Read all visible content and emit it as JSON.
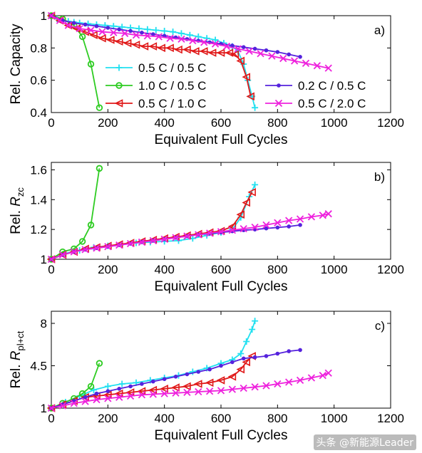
{
  "watermark": "头条 @新能源Leader",
  "colors": {
    "0.5 C / 0.5 C": "#22e0f0",
    "1.0 C / 0.5 C": "#2ecc22",
    "0.5 C / 1.0 C": "#e01818",
    "0.2 C / 0.5 C": "#5522dd",
    "0.5 C / 2.0 C": "#ee22dd"
  },
  "markers": {
    "0.5 C / 0.5 C": "plus",
    "1.0 C / 0.5 C": "circle",
    "0.5 C / 1.0 C": "triangle-left",
    "0.2 C / 0.5 C": "dot",
    "0.5 C / 2.0 C": "cross"
  },
  "chart_data": [
    {
      "type": "line",
      "panel": "a)",
      "xlabel": "Equivalent Full Cycles",
      "ylabel": "Rel. Capacity",
      "xlim": [
        0,
        1200
      ],
      "ylim": [
        0.4,
        1.0
      ],
      "xticks": [
        0,
        200,
        400,
        600,
        800,
        1000,
        1200
      ],
      "yticks": [
        0.4,
        0.6,
        0.8,
        1
      ],
      "legend": [
        "0.5 C / 0.5 C",
        "1.0 C / 0.5 C",
        "0.5 C / 1.0 C",
        "0.2 C / 0.5 C",
        "0.5 C / 2.0 C"
      ],
      "series": [
        {
          "name": "0.5 C / 0.5 C",
          "x": [
            0,
            20,
            40,
            60,
            80,
            100,
            130,
            160,
            190,
            220,
            250,
            280,
            310,
            340,
            370,
            400,
            430,
            460,
            490,
            520,
            550,
            580,
            610,
            640,
            660,
            680,
            695,
            710,
            720
          ],
          "y": [
            1.0,
            0.98,
            0.97,
            0.965,
            0.96,
            0.955,
            0.95,
            0.945,
            0.94,
            0.935,
            0.93,
            0.925,
            0.92,
            0.915,
            0.91,
            0.905,
            0.9,
            0.89,
            0.88,
            0.87,
            0.86,
            0.85,
            0.83,
            0.81,
            0.78,
            0.7,
            0.6,
            0.5,
            0.43
          ]
        },
        {
          "name": "1.0 C / 0.5 C",
          "x": [
            0,
            40,
            80,
            110,
            140,
            170
          ],
          "y": [
            1.0,
            0.98,
            0.94,
            0.87,
            0.7,
            0.43
          ]
        },
        {
          "name": "0.5 C / 1.0 C",
          "x": [
            0,
            30,
            60,
            90,
            120,
            150,
            180,
            210,
            240,
            270,
            300,
            330,
            360,
            390,
            420,
            450,
            480,
            510,
            540,
            570,
            600,
            630,
            650,
            670,
            690,
            705
          ],
          "y": [
            1.0,
            0.97,
            0.94,
            0.92,
            0.9,
            0.88,
            0.86,
            0.85,
            0.84,
            0.83,
            0.82,
            0.81,
            0.81,
            0.8,
            0.8,
            0.79,
            0.79,
            0.78,
            0.78,
            0.77,
            0.77,
            0.77,
            0.76,
            0.72,
            0.62,
            0.5
          ]
        },
        {
          "name": "0.2 C / 0.5 C",
          "x": [
            0,
            40,
            80,
            120,
            160,
            200,
            240,
            280,
            320,
            360,
            400,
            440,
            480,
            520,
            560,
            600,
            640,
            680,
            720,
            760,
            800,
            840,
            880
          ],
          "y": [
            1.0,
            0.97,
            0.955,
            0.945,
            0.935,
            0.925,
            0.915,
            0.905,
            0.895,
            0.885,
            0.875,
            0.865,
            0.855,
            0.845,
            0.835,
            0.825,
            0.815,
            0.805,
            0.795,
            0.785,
            0.775,
            0.76,
            0.745
          ]
        },
        {
          "name": "0.5 C / 2.0 C",
          "x": [
            0,
            30,
            60,
            100,
            140,
            180,
            220,
            260,
            300,
            340,
            380,
            420,
            460,
            500,
            540,
            580,
            620,
            660,
            700,
            740,
            780,
            820,
            860,
            900,
            940,
            980
          ],
          "y": [
            1.0,
            0.97,
            0.94,
            0.92,
            0.91,
            0.9,
            0.895,
            0.89,
            0.88,
            0.875,
            0.87,
            0.86,
            0.855,
            0.845,
            0.835,
            0.825,
            0.81,
            0.795,
            0.78,
            0.765,
            0.75,
            0.735,
            0.72,
            0.705,
            0.69,
            0.675
          ]
        }
      ]
    },
    {
      "type": "line",
      "panel": "b)",
      "xlabel": "Equivalent Full Cycles",
      "ylabel": "Rel. R",
      "ylabel_sub": "zc",
      "xlim": [
        0,
        1200
      ],
      "ylim": [
        1.0,
        1.65
      ],
      "xticks": [
        0,
        200,
        400,
        600,
        800,
        1000,
        1200
      ],
      "yticks": [
        1,
        1.2,
        1.4,
        1.6
      ],
      "series": [
        {
          "name": "0.5 C / 0.5 C",
          "x": [
            0,
            50,
            100,
            150,
            200,
            250,
            300,
            350,
            400,
            450,
            500,
            550,
            600,
            640,
            670,
            700,
            720
          ],
          "y": [
            1.0,
            1.04,
            1.06,
            1.08,
            1.09,
            1.1,
            1.11,
            1.115,
            1.12,
            1.125,
            1.14,
            1.16,
            1.18,
            1.2,
            1.28,
            1.42,
            1.5
          ]
        },
        {
          "name": "1.0 C / 0.5 C",
          "x": [
            0,
            40,
            80,
            110,
            140,
            170
          ],
          "y": [
            1.0,
            1.05,
            1.07,
            1.12,
            1.23,
            1.61
          ]
        },
        {
          "name": "0.5 C / 1.0 C",
          "x": [
            0,
            40,
            80,
            120,
            160,
            200,
            240,
            280,
            320,
            360,
            400,
            440,
            480,
            520,
            560,
            600,
            640,
            670,
            690,
            710
          ],
          "y": [
            1.0,
            1.03,
            1.05,
            1.07,
            1.08,
            1.09,
            1.1,
            1.11,
            1.12,
            1.13,
            1.14,
            1.15,
            1.16,
            1.17,
            1.18,
            1.19,
            1.22,
            1.3,
            1.38,
            1.45
          ]
        },
        {
          "name": "0.2 C / 0.5 C",
          "x": [
            0,
            40,
            80,
            120,
            160,
            200,
            240,
            280,
            320,
            360,
            400,
            440,
            480,
            520,
            560,
            600,
            640,
            680,
            720,
            760,
            800,
            840,
            880
          ],
          "y": [
            1.0,
            1.03,
            1.05,
            1.065,
            1.075,
            1.085,
            1.095,
            1.105,
            1.115,
            1.125,
            1.135,
            1.145,
            1.155,
            1.165,
            1.172,
            1.18,
            1.188,
            1.195,
            1.2,
            1.207,
            1.213,
            1.22,
            1.23
          ]
        },
        {
          "name": "0.5 C / 2.0 C",
          "x": [
            0,
            40,
            80,
            120,
            160,
            200,
            240,
            280,
            320,
            360,
            400,
            440,
            480,
            520,
            560,
            600,
            640,
            680,
            720,
            760,
            800,
            840,
            880,
            920,
            960,
            980
          ],
          "y": [
            1.0,
            1.03,
            1.05,
            1.065,
            1.075,
            1.085,
            1.095,
            1.105,
            1.115,
            1.125,
            1.135,
            1.145,
            1.155,
            1.165,
            1.175,
            1.185,
            1.195,
            1.205,
            1.215,
            1.23,
            1.245,
            1.26,
            1.27,
            1.285,
            1.295,
            1.305
          ]
        }
      ]
    },
    {
      "type": "line",
      "panel": "c)",
      "xlabel": "Equivalent Full Cycles",
      "ylabel": "Rel. R",
      "ylabel_sub": "pl+ct",
      "xlim": [
        0,
        1200
      ],
      "ylim": [
        1.0,
        9.0
      ],
      "xticks": [
        0,
        200,
        400,
        600,
        800,
        1000,
        1200
      ],
      "yticks": [
        1,
        4.5,
        8
      ],
      "series": [
        {
          "name": "0.5 C / 0.5 C",
          "x": [
            0,
            50,
            100,
            150,
            200,
            250,
            300,
            350,
            400,
            450,
            500,
            550,
            600,
            640,
            670,
            690,
            710,
            720
          ],
          "y": [
            1.0,
            1.5,
            2.0,
            2.5,
            2.8,
            3.0,
            3.1,
            3.3,
            3.5,
            3.7,
            4.0,
            4.3,
            4.7,
            5.0,
            5.5,
            6.5,
            7.5,
            8.2
          ]
        },
        {
          "name": "1.0 C / 0.5 C",
          "x": [
            0,
            40,
            80,
            110,
            140,
            170
          ],
          "y": [
            1.0,
            1.4,
            1.8,
            2.2,
            2.8,
            4.7
          ]
        },
        {
          "name": "0.5 C / 1.0 C",
          "x": [
            0,
            40,
            80,
            120,
            160,
            200,
            240,
            280,
            320,
            360,
            400,
            440,
            480,
            520,
            560,
            600,
            640,
            670,
            690,
            710
          ],
          "y": [
            1.0,
            1.3,
            1.6,
            1.9,
            2.0,
            2.1,
            2.2,
            2.3,
            2.4,
            2.5,
            2.6,
            2.7,
            2.8,
            3.0,
            3.1,
            3.3,
            3.6,
            4.2,
            4.8,
            5.3
          ]
        },
        {
          "name": "0.2 C / 0.5 C",
          "x": [
            0,
            40,
            80,
            120,
            160,
            200,
            240,
            280,
            320,
            360,
            400,
            440,
            480,
            520,
            560,
            600,
            640,
            680,
            720,
            760,
            800,
            840,
            880
          ],
          "y": [
            1.0,
            1.3,
            1.6,
            1.9,
            2.2,
            2.4,
            2.6,
            2.8,
            3.0,
            3.2,
            3.4,
            3.6,
            3.8,
            4.0,
            4.2,
            4.5,
            4.8,
            5.1,
            5.2,
            5.3,
            5.5,
            5.7,
            5.8
          ]
        },
        {
          "name": "0.5 C / 2.0 C",
          "x": [
            0,
            40,
            80,
            120,
            160,
            200,
            240,
            280,
            320,
            360,
            400,
            440,
            480,
            520,
            560,
            600,
            640,
            680,
            720,
            760,
            800,
            840,
            880,
            920,
            960,
            980
          ],
          "y": [
            1.0,
            1.2,
            1.4,
            1.55,
            1.7,
            1.8,
            1.9,
            2.0,
            2.1,
            2.15,
            2.2,
            2.25,
            2.3,
            2.35,
            2.4,
            2.45,
            2.55,
            2.65,
            2.75,
            2.85,
            3.0,
            3.15,
            3.3,
            3.5,
            3.7,
            3.9
          ]
        }
      ]
    }
  ]
}
